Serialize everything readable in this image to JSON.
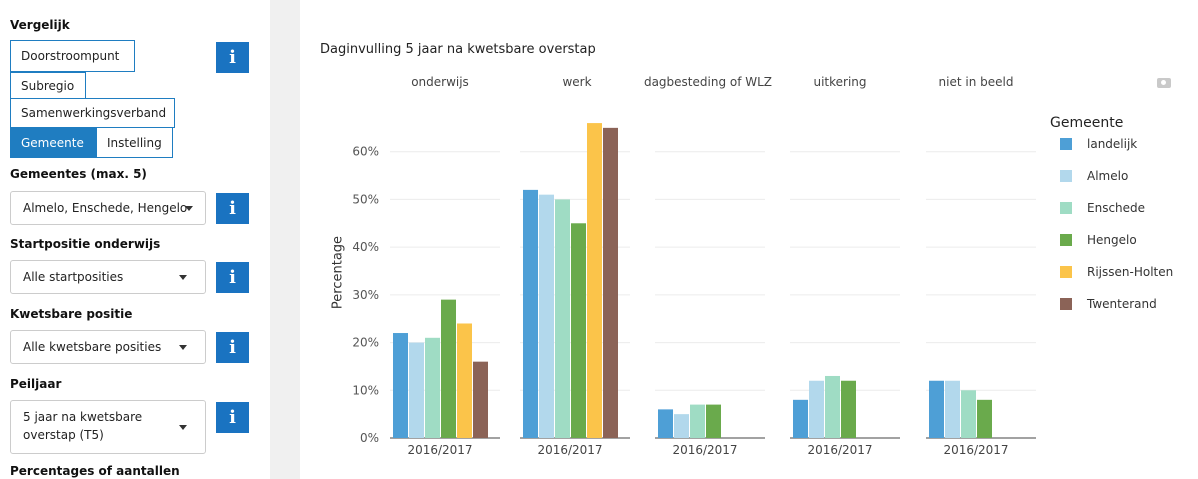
{
  "sidebar": {
    "compare_label": "Vergelijk",
    "compare_buttons": [
      "Doorstroompunt",
      "Subregio",
      "Samenwerkingsverband",
      "Gemeente",
      "Instelling"
    ],
    "municipalities_label": "Gemeentes (max. 5)",
    "municipalities_value": "Almelo, Enschede, Hengelo",
    "start_label": "Startpositie onderwijs",
    "start_value": "Alle startposities",
    "vulnerable_label": "Kwetsbare positie",
    "vulnerable_value": "Alle kwetsbare posities",
    "year_label": "Peiljaar",
    "year_value": "5 jaar na kwetsbare overstap (T5)",
    "percent_label": "Percentages of aantallen",
    "info_glyph": "i"
  },
  "chart_data": {
    "type": "bar",
    "title": "Daginvulling 5 jaar na kwetsbare overstap",
    "ylabel": "Percentage",
    "ylim": [
      0,
      70
    ],
    "yticks": [
      "0%",
      "10%",
      "20%",
      "30%",
      "40%",
      "50%",
      "60%"
    ],
    "panels": [
      "onderwijs",
      "werk",
      "dagbesteding of WLZ",
      "uitkering",
      "niet in beeld"
    ],
    "panel_category": "2016/2017",
    "legend_title": "Gemeente",
    "series": [
      {
        "name": "landelijk",
        "color": "#4e9fd6",
        "values": [
          22,
          52,
          6,
          8,
          12
        ]
      },
      {
        "name": "Almelo",
        "color": "#b2d8ec",
        "values": [
          20,
          51,
          5,
          12,
          12
        ]
      },
      {
        "name": "Enschede",
        "color": "#9fdcc4",
        "values": [
          21,
          50,
          7,
          13,
          10
        ]
      },
      {
        "name": "Hengelo",
        "color": "#6aaa4c",
        "values": [
          29,
          45,
          7,
          12,
          8
        ]
      },
      {
        "name": "Rijssen-Holten",
        "color": "#fbc44a",
        "values": [
          24,
          66,
          null,
          null,
          null
        ]
      },
      {
        "name": "Twenterand",
        "color": "#8b6357",
        "values": [
          16,
          65,
          null,
          null,
          null
        ]
      }
    ]
  }
}
